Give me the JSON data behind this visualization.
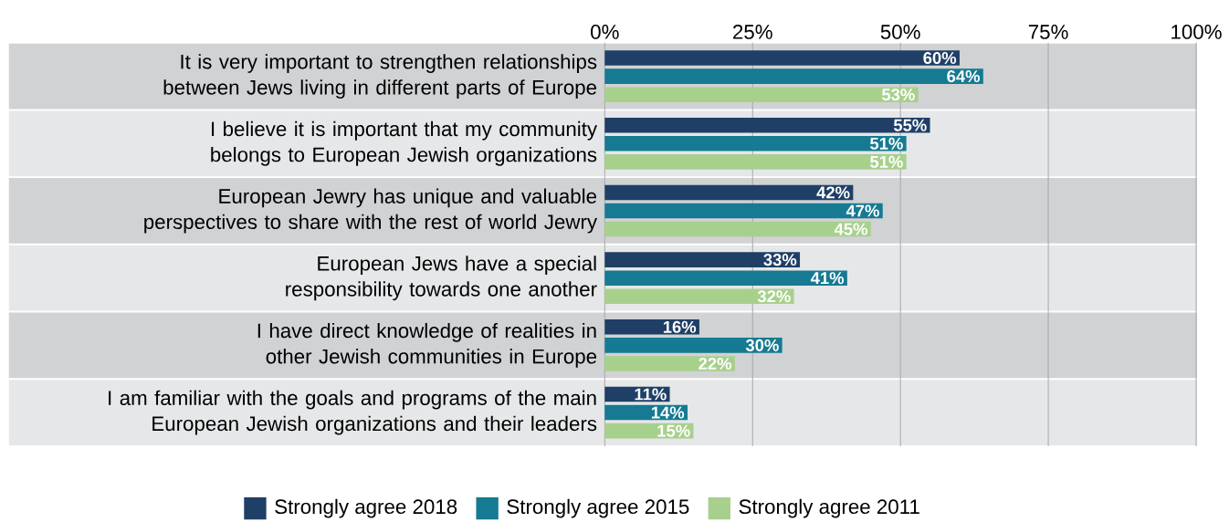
{
  "chart_data": {
    "type": "bar",
    "orientation": "horizontal",
    "categories": [
      "It is very important to strengthen relationships between Jews living in different parts of Europe",
      "I believe it is important that my community belongs to European Jewish organizations",
      "European Jewry has unique and valuable perspectives to share with the rest of world Jewry",
      "European Jews have a special responsibility towards one another",
      "I have direct knowledge of realities in other Jewish communities in Europe",
      "I am familiar with the goals and programs of the main European Jewish organizations and their leaders"
    ],
    "series": [
      {
        "name": "Strongly agree 2018",
        "color": "#1f3f66",
        "values": [
          60,
          55,
          42,
          33,
          16,
          11
        ],
        "value_labels": [
          "60%",
          "55%",
          "42%",
          "33%",
          "16%",
          "11%"
        ]
      },
      {
        "name": "Strongly agree 2015",
        "color": "#167a92",
        "values": [
          64,
          51,
          47,
          41,
          30,
          14
        ],
        "value_labels": [
          "64%",
          "51%",
          "47%",
          "41%",
          "30%",
          "14%"
        ]
      },
      {
        "name": "Strongly agree 2011",
        "color": "#a8d08d",
        "values": [
          53,
          51,
          45,
          32,
          22,
          15
        ],
        "value_labels": [
          "53%",
          "51%",
          "45%",
          "32%",
          "22%",
          "15%"
        ]
      }
    ],
    "xlim": [
      0,
      100
    ],
    "xticks": [
      {
        "value": 0,
        "label": "0%"
      },
      {
        "value": 25,
        "label": "25%"
      },
      {
        "value": 50,
        "label": "50%"
      },
      {
        "value": 75,
        "label": "75%"
      },
      {
        "value": 100,
        "label": "100%"
      }
    ],
    "grid": "x",
    "legend": "bottom"
  }
}
